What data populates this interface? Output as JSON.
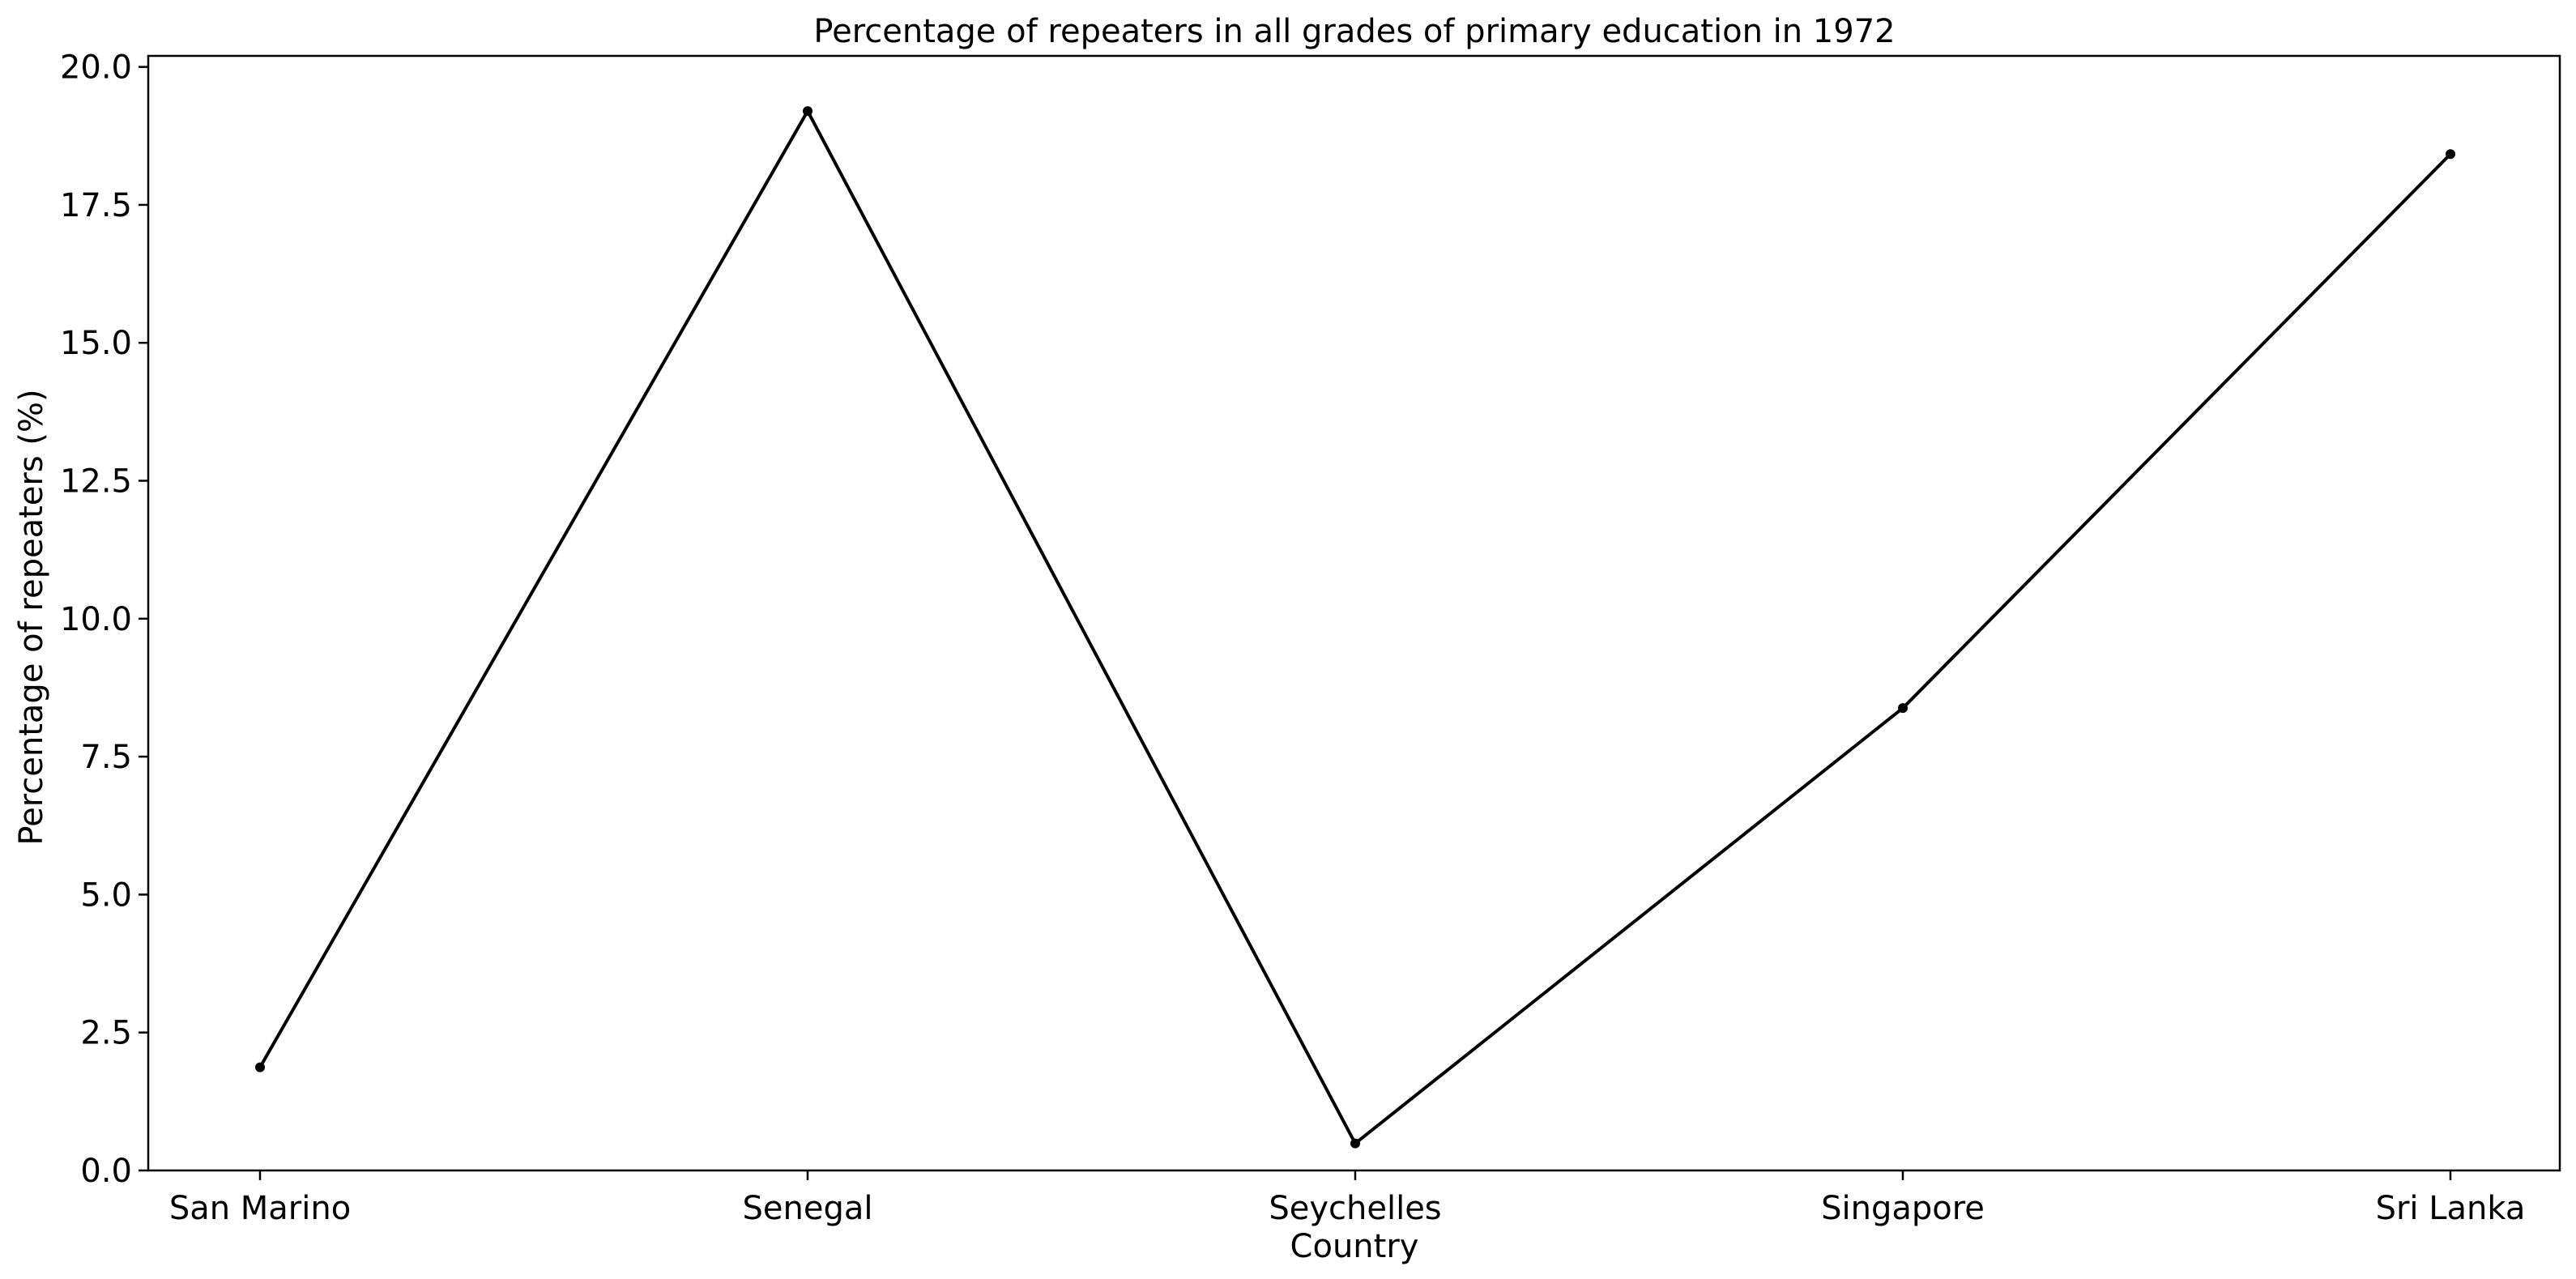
{
  "chart_data": {
    "type": "line",
    "title": "Percentage of repeaters in all grades of primary education in 1972",
    "xlabel": "Country",
    "ylabel": "Percentage of repeaters (%)",
    "categories": [
      "San Marino",
      "Senegal",
      "Seychelles",
      "Singapore",
      "Sri Lanka"
    ],
    "series": [
      {
        "values": [
          1.87,
          19.2,
          0.49,
          8.38,
          18.42
        ]
      }
    ],
    "ylim": [
      0,
      20.2
    ],
    "yticks": [
      "0.0",
      "2.5",
      "5.0",
      "7.5",
      "10.0",
      "12.5",
      "15.0",
      "17.5",
      "20.0"
    ],
    "grid": false,
    "line_color": "#000000",
    "marker_color": "#000000"
  }
}
